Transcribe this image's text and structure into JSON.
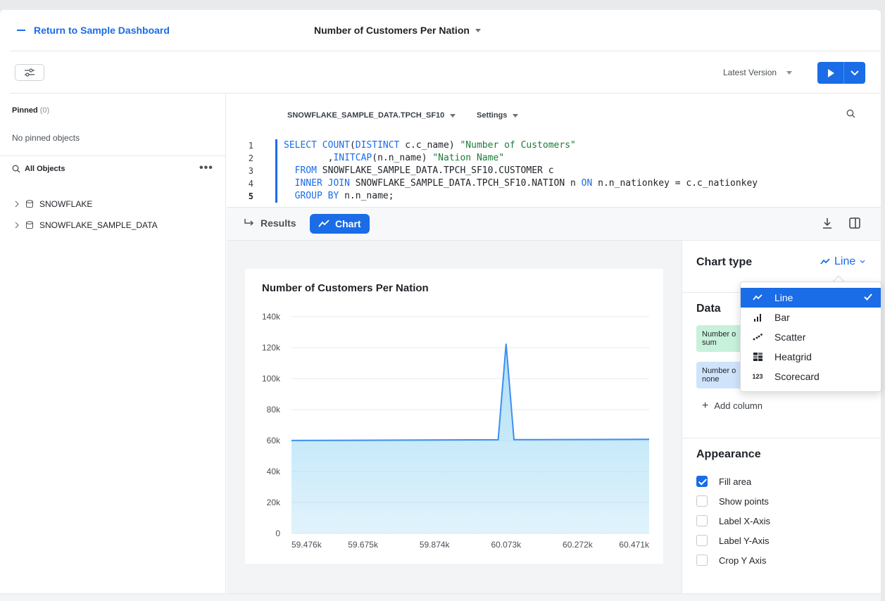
{
  "header": {
    "back_label": "Return to Sample Dashboard",
    "worksheet_title": "Number of Customers Per Nation"
  },
  "toolbar": {
    "version_label": "Latest Version"
  },
  "sidebar": {
    "pinned_label": "Pinned",
    "pinned_count": "(0)",
    "no_pinned": "No pinned objects",
    "all_objects": "All Objects",
    "databases": [
      "SNOWFLAKE",
      "SNOWFLAKE_SAMPLE_DATA"
    ]
  },
  "editor": {
    "context": "SNOWFLAKE_SAMPLE_DATA.TPCH_SF10",
    "settings_label": "Settings",
    "line_numbers": [
      "1",
      "2",
      "3",
      "4",
      "5"
    ]
  },
  "results": {
    "tab_results": "Results",
    "tab_chart": "Chart"
  },
  "chart_data": {
    "type": "area",
    "title": "Number of Customers Per Nation",
    "x_ticks": [
      "59.476k",
      "59.675k",
      "59.874k",
      "60.073k",
      "60.272k",
      "60.471k"
    ],
    "y_ticks": [
      "0",
      "20k",
      "40k",
      "60k",
      "80k",
      "100k",
      "120k",
      "140k"
    ],
    "ylim": [
      0,
      140000
    ],
    "xlim": [
      59476,
      60471
    ],
    "x": [
      59476,
      60051,
      60073,
      60095,
      60471
    ],
    "values": [
      60050,
      60500,
      122500,
      60550,
      60800
    ],
    "fill_area": true,
    "grid": true
  },
  "config": {
    "chart_type_label": "Chart type",
    "chart_type_value": "Line",
    "data_label": "Data",
    "pill1_line1": "Number o",
    "pill1_line2": "sum",
    "pill2_line1": "Number o",
    "pill2_line2": "none",
    "add_column": "Add column",
    "appearance_label": "Appearance",
    "options": [
      {
        "label": "Fill area",
        "checked": true
      },
      {
        "label": "Show points",
        "checked": false
      },
      {
        "label": "Label X-Axis",
        "checked": false
      },
      {
        "label": "Label Y-Axis",
        "checked": false
      },
      {
        "label": "Crop Y Axis",
        "checked": false
      }
    ]
  },
  "dropdown": {
    "items": [
      "Line",
      "Bar",
      "Scatter",
      "Heatgrid",
      "Scorecard"
    ],
    "selected": "Line",
    "scorecard_glyph": "123"
  },
  "colors": {
    "accent": "#1a6ce7",
    "line": "#3d8ef0",
    "fill": "#a9ddf6"
  }
}
